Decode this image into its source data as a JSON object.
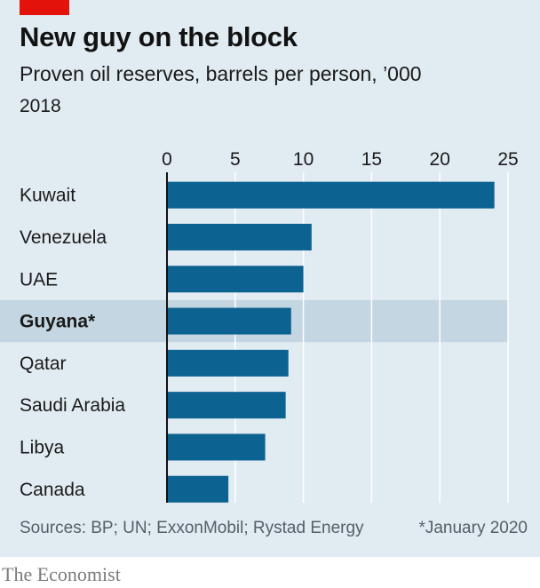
{
  "header": {
    "title": "New guy on the block",
    "subtitle": "Proven oil reserves, barrels per person, ’000",
    "year": "2018"
  },
  "footer": {
    "source": "Sources: BP; UN; ExxonMobil; Rystad Energy",
    "note": "*January 2020",
    "brand": "The Economist"
  },
  "colors": {
    "bar": "#0c6291",
    "highlight_band": "#c3d6e1",
    "grid": "#ffffff",
    "axis": "#121212",
    "background": "#e1ebf2",
    "brand_tab": "#e3120b"
  },
  "chart_data": {
    "type": "bar",
    "orientation": "horizontal",
    "title": "New guy on the block",
    "subtitle": "Proven oil reserves, barrels per person, ’000",
    "categories": [
      "Kuwait",
      "Venezuela",
      "UAE",
      "Guyana*",
      "Qatar",
      "Saudi Arabia",
      "Libya",
      "Canada"
    ],
    "values": [
      24.0,
      10.6,
      10.0,
      9.1,
      8.9,
      8.7,
      7.2,
      4.5
    ],
    "highlight": "Guyana*",
    "xlim": [
      0,
      25
    ],
    "xticks": [
      "0",
      "5",
      "10",
      "15",
      "20",
      "25"
    ],
    "tick_values": [
      0,
      5,
      10,
      15,
      20,
      25
    ],
    "xlabel": "",
    "ylabel": "",
    "grid": true,
    "legend": "none"
  }
}
